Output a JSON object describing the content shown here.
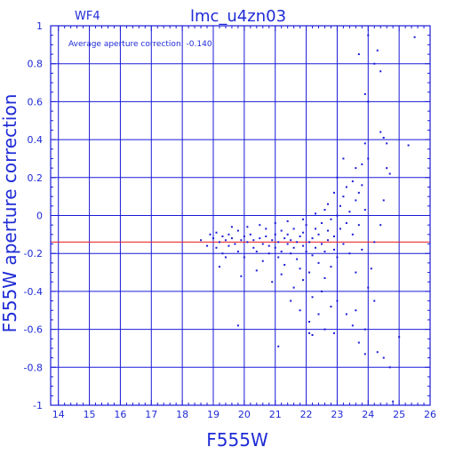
{
  "chart_data": {
    "type": "scatter",
    "panel_label": "WF4",
    "title": "lmc_u4zn03",
    "xlabel": "F555W",
    "ylabel": "F555W aperture correction",
    "annotation": "Average aperture correction: -0.140",
    "xlim": [
      13.75,
      26
    ],
    "ylim": [
      -1,
      1
    ],
    "x_ticks": [
      14,
      15,
      16,
      17,
      18,
      19,
      20,
      21,
      22,
      23,
      24,
      25,
      26
    ],
    "y_ticks": [
      -1,
      -0.8,
      -0.6,
      -0.4,
      -0.2,
      0,
      0.2,
      0.4,
      0.6,
      0.8,
      1
    ],
    "x_tick_labels": [
      "14",
      "15",
      "16",
      "17",
      "18",
      "19",
      "20",
      "21",
      "22",
      "23",
      "24",
      "25",
      "26"
    ],
    "y_tick_labels": [
      "-1",
      "-0.8",
      "-0.6",
      "-0.4",
      "-0.2",
      "0",
      "0.2",
      "0.4",
      "0.6",
      "0.8",
      "1"
    ],
    "grid": true,
    "average_line": -0.14,
    "colors": {
      "axes": "#1a1ad8",
      "points": "#1a1ad8",
      "average_line": "#e81b1b",
      "text": "#1f2bd6"
    },
    "series": [
      {
        "points": [
          [
            18.6,
            -0.13
          ],
          [
            18.8,
            -0.16
          ],
          [
            18.9,
            -0.1
          ],
          [
            19.0,
            -0.12
          ],
          [
            19.1,
            -0.09
          ],
          [
            19.1,
            -0.17
          ],
          [
            19.2,
            -0.14
          ],
          [
            19.3,
            -0.11
          ],
          [
            19.3,
            -0.2
          ],
          [
            19.4,
            -0.13
          ],
          [
            19.5,
            -0.1
          ],
          [
            19.5,
            -0.16
          ],
          [
            19.6,
            -0.12
          ],
          [
            19.7,
            -0.15
          ],
          [
            19.8,
            -0.08
          ],
          [
            19.8,
            -0.19
          ],
          [
            19.9,
            -0.13
          ],
          [
            20.0,
            -0.11
          ],
          [
            20.0,
            -0.22
          ],
          [
            20.1,
            -0.14
          ],
          [
            20.2,
            -0.1
          ],
          [
            20.3,
            -0.17
          ],
          [
            20.3,
            -0.13
          ],
          [
            20.4,
            -0.19
          ],
          [
            20.5,
            -0.12
          ],
          [
            20.6,
            -0.15
          ],
          [
            20.6,
            -0.24
          ],
          [
            20.7,
            -0.11
          ],
          [
            20.8,
            -0.16
          ],
          [
            20.8,
            -0.2
          ],
          [
            20.9,
            -0.13
          ],
          [
            21.0,
            -0.1
          ],
          [
            21.0,
            -0.17
          ],
          [
            21.1,
            -0.22
          ],
          [
            21.1,
            -0.14
          ],
          [
            21.2,
            -0.08
          ],
          [
            21.2,
            -0.19
          ],
          [
            21.3,
            -0.12
          ],
          [
            21.3,
            -0.26
          ],
          [
            21.4,
            -0.15
          ],
          [
            21.4,
            -0.1
          ],
          [
            21.5,
            -0.2
          ],
          [
            21.5,
            -0.13
          ],
          [
            21.6,
            -0.17
          ],
          [
            21.6,
            -0.07
          ],
          [
            21.7,
            -0.23
          ],
          [
            21.7,
            -0.14
          ],
          [
            21.8,
            -0.11
          ],
          [
            21.8,
            -0.28
          ],
          [
            21.9,
            -0.16
          ],
          [
            21.9,
            -0.09
          ],
          [
            22.0,
            -0.19
          ],
          [
            22.0,
            -0.05
          ],
          [
            22.1,
            -0.14
          ],
          [
            22.1,
            -0.3
          ],
          [
            22.2,
            -0.12
          ],
          [
            22.2,
            -0.21
          ],
          [
            22.3,
            -0.07
          ],
          [
            22.3,
            -0.17
          ],
          [
            22.4,
            -0.25
          ],
          [
            22.4,
            -0.1
          ],
          [
            22.5,
            -0.04
          ],
          [
            22.5,
            -0.15
          ],
          [
            22.6,
            -0.33
          ],
          [
            22.6,
            -0.19
          ],
          [
            22.7,
            -0.08
          ],
          [
            22.7,
            -0.13
          ],
          [
            22.8,
            -0.02
          ],
          [
            22.8,
            -0.27
          ],
          [
            22.9,
            -0.11
          ],
          [
            22.9,
            -0.18
          ],
          [
            23.0,
            0.0
          ],
          [
            23.0,
            -0.22
          ],
          [
            23.1,
            -0.07
          ],
          [
            23.1,
            0.05
          ],
          [
            23.2,
            -0.15
          ],
          [
            23.2,
            0.1
          ],
          [
            23.3,
            -0.04
          ],
          [
            23.3,
            0.15
          ],
          [
            23.4,
            -0.2
          ],
          [
            23.4,
            0.02
          ],
          [
            23.5,
            0.18
          ],
          [
            23.5,
            -0.1
          ],
          [
            23.6,
            0.08
          ],
          [
            23.6,
            -0.3
          ],
          [
            23.7,
            0.12
          ],
          [
            23.7,
            -0.05
          ],
          [
            23.8,
            0.16
          ],
          [
            23.8,
            -0.18
          ],
          [
            23.9,
            0.03
          ],
          [
            19.2,
            -0.27
          ],
          [
            19.9,
            -0.32
          ],
          [
            20.4,
            -0.29
          ],
          [
            20.9,
            -0.35
          ],
          [
            21.2,
            -0.31
          ],
          [
            21.6,
            -0.38
          ],
          [
            21.9,
            -0.34
          ],
          [
            22.2,
            -0.43
          ],
          [
            22.5,
            -0.4
          ],
          [
            22.8,
            -0.48
          ],
          [
            23.0,
            -0.45
          ],
          [
            23.3,
            -0.52
          ],
          [
            23.6,
            -0.5
          ],
          [
            21.8,
            -0.5
          ],
          [
            22.1,
            -0.56
          ],
          [
            22.6,
            -0.6
          ],
          [
            22.9,
            -0.62
          ],
          [
            23.5,
            -0.58
          ],
          [
            21.5,
            -0.45
          ],
          [
            22.4,
            -0.52
          ],
          [
            19.8,
            -0.58
          ],
          [
            21.1,
            -0.69
          ],
          [
            22.1,
            -0.62
          ],
          [
            22.2,
            -0.63
          ],
          [
            23.7,
            -0.67
          ],
          [
            23.9,
            -0.6
          ],
          [
            23.9,
            -0.73
          ],
          [
            24.3,
            -0.72
          ],
          [
            24.5,
            -0.75
          ],
          [
            24.7,
            -0.8
          ],
          [
            24.8,
            -0.98
          ],
          [
            25.0,
            -0.64
          ],
          [
            24.2,
            -0.45
          ],
          [
            24.0,
            -0.38
          ],
          [
            24.1,
            -0.28
          ],
          [
            24.2,
            -0.14
          ],
          [
            24.4,
            -0.05
          ],
          [
            24.5,
            0.08
          ],
          [
            24.6,
            0.25
          ],
          [
            24.7,
            0.22
          ],
          [
            24.0,
            0.3
          ],
          [
            23.9,
            0.38
          ],
          [
            23.8,
            0.27
          ],
          [
            24.4,
            0.44
          ],
          [
            24.5,
            0.41
          ],
          [
            24.6,
            0.38
          ],
          [
            25.3,
            0.37
          ],
          [
            24.0,
            0.6
          ],
          [
            23.9,
            0.64
          ],
          [
            24.2,
            0.8
          ],
          [
            24.4,
            0.76
          ],
          [
            24.3,
            0.87
          ],
          [
            24.0,
            0.95
          ],
          [
            23.7,
            0.85
          ],
          [
            25.5,
            0.94
          ],
          [
            23.6,
            0.25
          ],
          [
            23.2,
            0.3
          ],
          [
            23.0,
            0.2
          ],
          [
            22.9,
            0.12
          ],
          [
            22.7,
            0.06
          ],
          [
            20.1,
            -0.06
          ],
          [
            20.5,
            -0.05
          ],
          [
            21.0,
            -0.04
          ],
          [
            21.4,
            -0.03
          ],
          [
            21.9,
            -0.02
          ],
          [
            22.3,
            0.01
          ],
          [
            22.6,
            0.03
          ],
          [
            20.7,
            -0.07
          ],
          [
            19.6,
            -0.06
          ],
          [
            19.4,
            -0.22
          ]
        ]
      }
    ]
  }
}
